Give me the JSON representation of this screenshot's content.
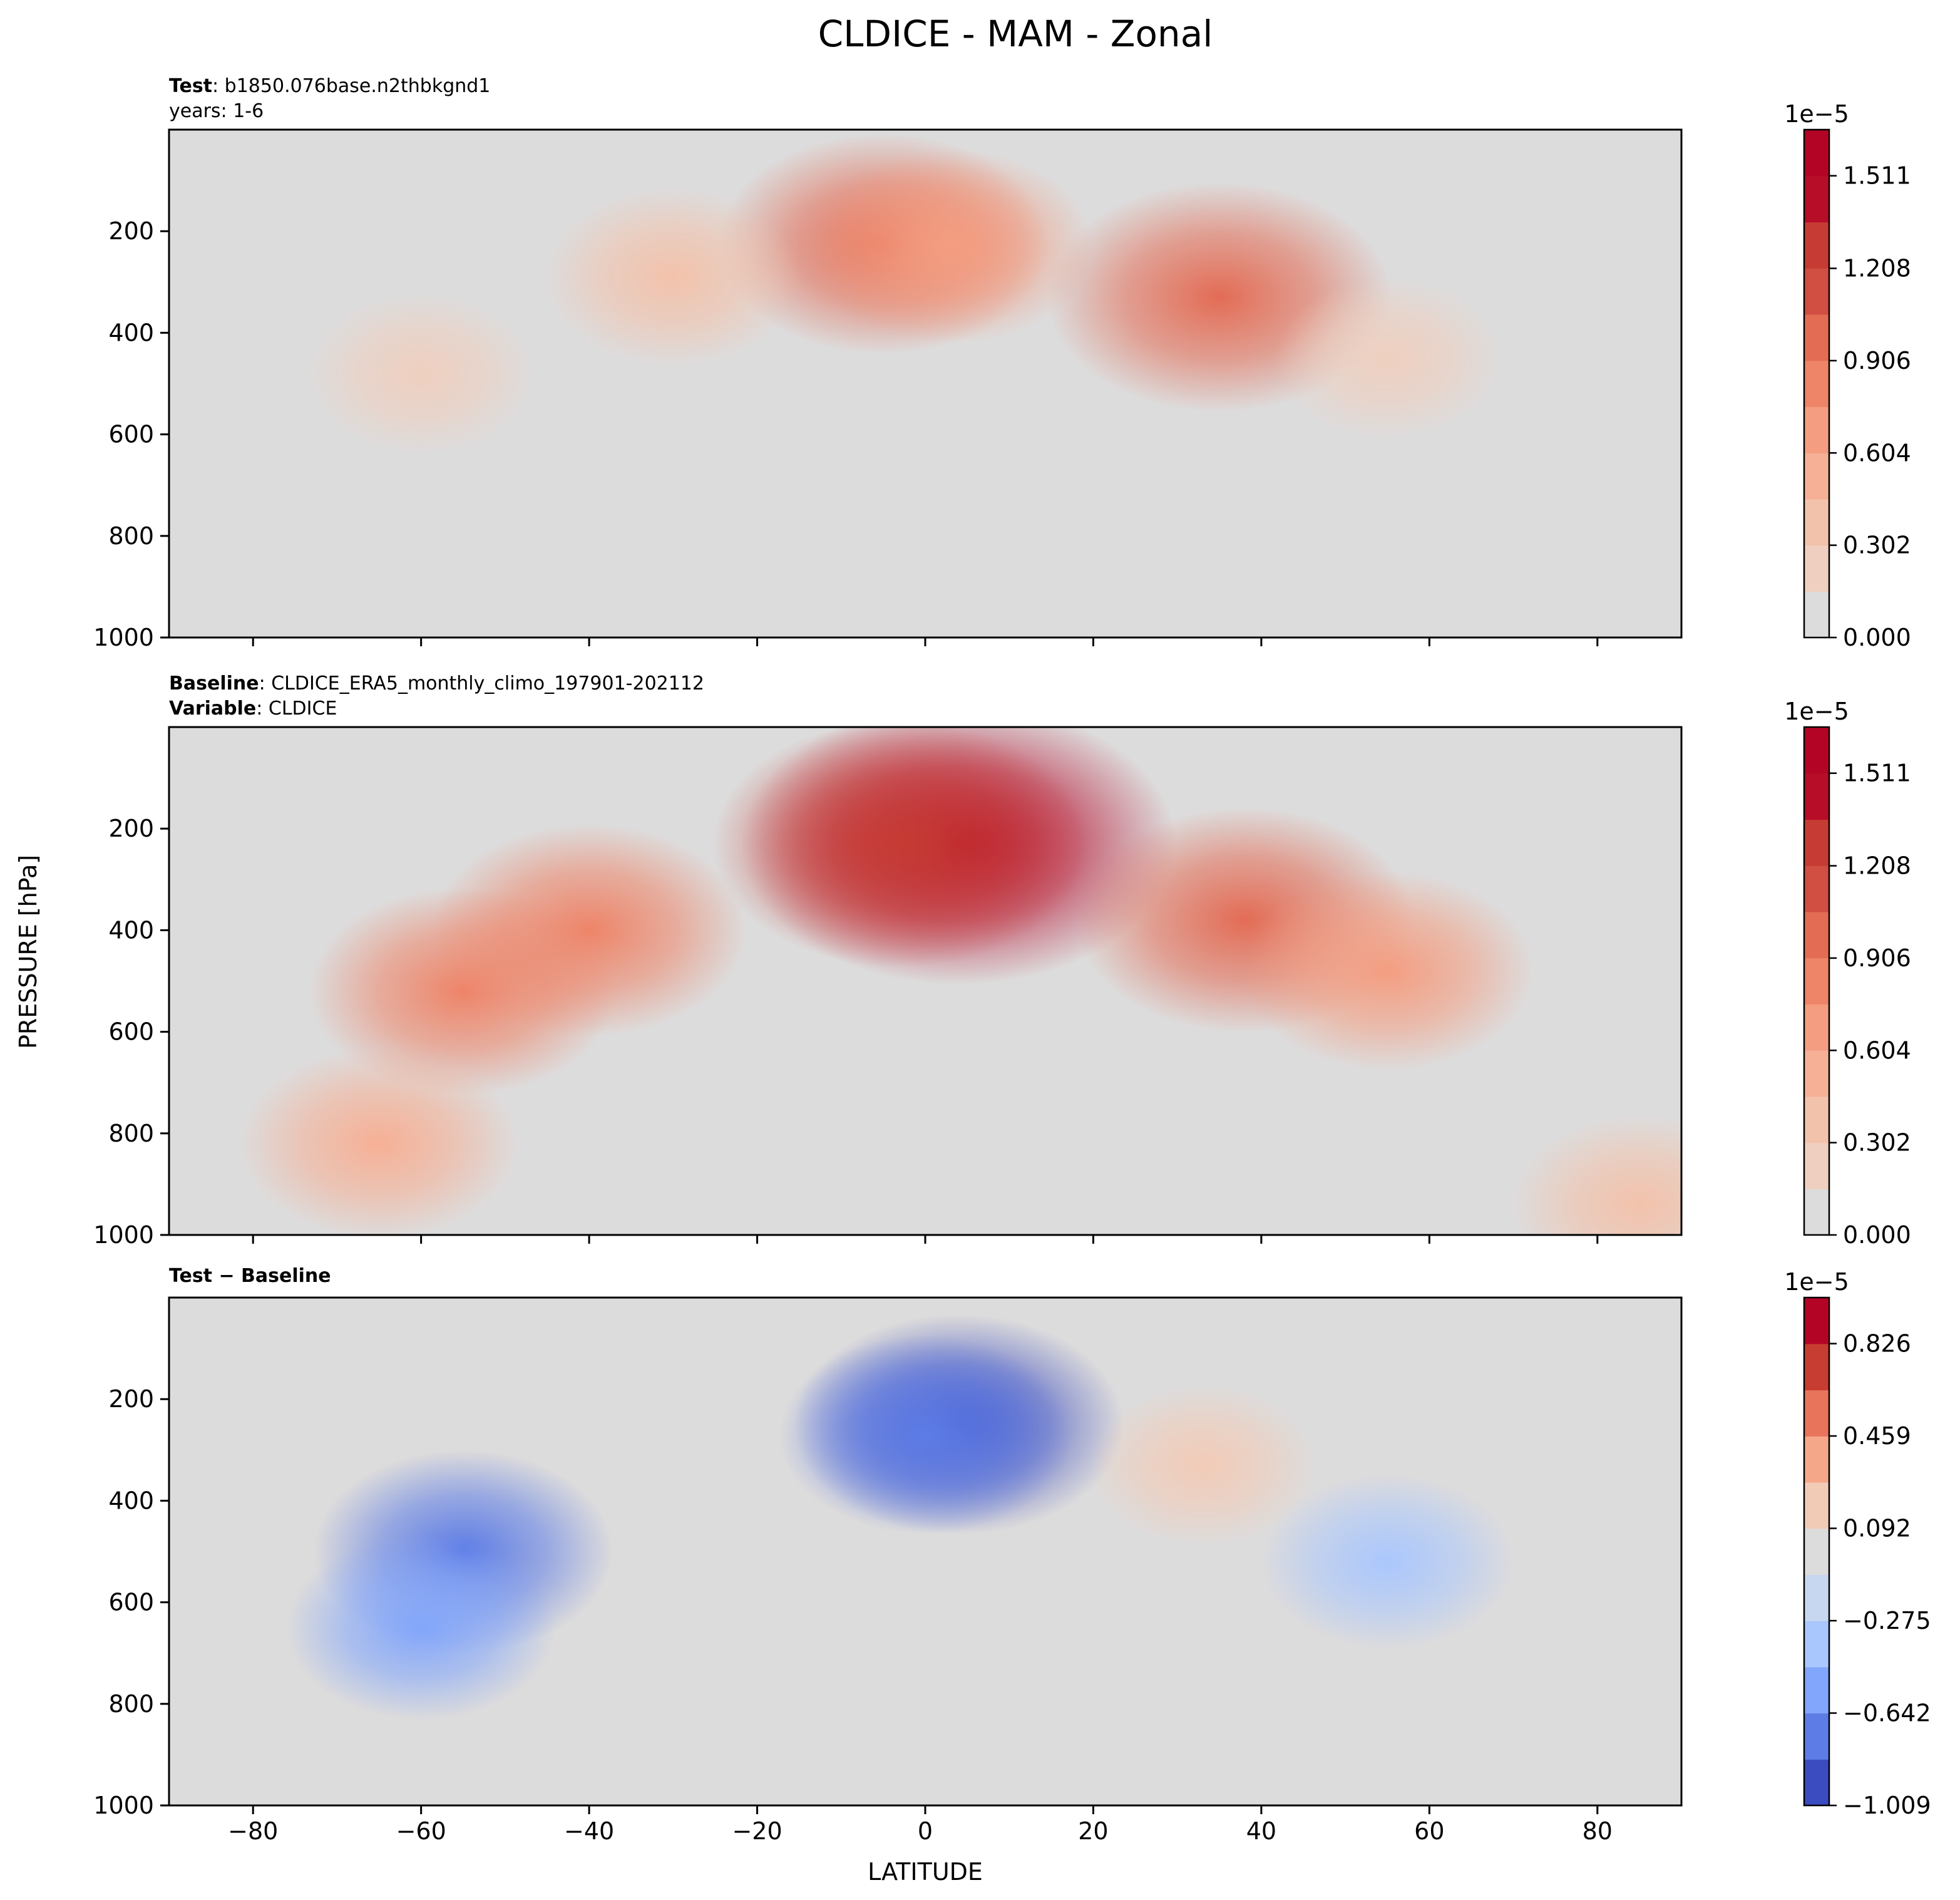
{
  "figure": {
    "title": "CLDICE - MAM - Zonal",
    "ylabel": "PRESSURE [hPa]",
    "xlabel": "LATITUDE"
  },
  "panels": [
    {
      "id": "test",
      "meta_line1_bold": "Test",
      "meta_line1_text": ": b1850.076base.n2thbkgnd1",
      "meta_line2_bold": "",
      "meta_line2_text": "years: 1-6",
      "colorbar_exponent": "1e−5",
      "colorbar_ticks": [
        "0.000",
        "0.302",
        "0.604",
        "0.906",
        "1.208",
        "1.511"
      ]
    },
    {
      "id": "baseline",
      "meta_line1_bold": "Baseline",
      "meta_line1_text": ": CLDICE_ERA5_monthly_climo_197901-202112",
      "meta_line2_bold": "Variable",
      "meta_line2_text": ": CLDICE",
      "colorbar_exponent": "1e−5",
      "colorbar_ticks": [
        "0.000",
        "0.302",
        "0.604",
        "0.906",
        "1.208",
        "1.511"
      ]
    },
    {
      "id": "diff",
      "meta_line1_bold": "Test − Baseline",
      "meta_line1_text": "",
      "meta_line2_bold": "",
      "meta_line2_text": "",
      "colorbar_exponent": "1e−5",
      "colorbar_ticks": [
        "−1.009",
        "−0.642",
        "−0.275",
        "0.092",
        "0.459",
        "0.826"
      ]
    }
  ],
  "chart_data": [
    {
      "type": "heatmap",
      "title": "Test: b1850.076base.n2thbkgnd1, years: 1-6",
      "xlabel": "LATITUDE",
      "ylabel": "PRESSURE [hPa]",
      "xlim": [
        -90,
        90
      ],
      "ylim": [
        1000,
        0
      ],
      "x_ticks": [
        -80,
        -60,
        -40,
        -20,
        0,
        20,
        40,
        60,
        80
      ],
      "y_ticks": [
        200,
        400,
        600,
        800,
        1000
      ],
      "units_multiplier": "1e-5",
      "colorbar": {
        "min": 0.0,
        "max": 1.662,
        "levels": 11,
        "ticks": [
          0.0,
          0.302,
          0.604,
          0.906,
          1.208,
          1.511
        ],
        "colors": [
          "#dddcdc",
          "#efcfbf",
          "#f3c2ab",
          "#f6b095",
          "#f49d80",
          "#ee8468",
          "#e36c55",
          "#d14e42",
          "#c63b33",
          "#b70d28",
          "#b40426"
        ]
      },
      "features": [
        {
          "lat": -5,
          "p": 225,
          "value": 0.95
        },
        {
          "lat": 3,
          "p": 230,
          "value": 0.65
        },
        {
          "lat": 35,
          "p": 330,
          "value": 1.05
        },
        {
          "lat": -30,
          "p": 290,
          "value": 0.45
        },
        {
          "lat": -60,
          "p": 480,
          "value": 0.25
        },
        {
          "lat": 55,
          "p": 450,
          "value": 0.25
        }
      ]
    },
    {
      "type": "heatmap",
      "title": "Baseline: CLDICE_ERA5_monthly_climo_197901-202112, Variable: CLDICE",
      "xlabel": "LATITUDE",
      "ylabel": "PRESSURE [hPa]",
      "xlim": [
        -90,
        90
      ],
      "ylim": [
        1000,
        0
      ],
      "x_ticks": [
        -80,
        -60,
        -40,
        -20,
        0,
        20,
        40,
        60,
        80
      ],
      "y_ticks": [
        200,
        400,
        600,
        800,
        1000
      ],
      "units_multiplier": "1e-5",
      "colorbar": {
        "min": 0.0,
        "max": 1.662,
        "levels": 11,
        "ticks": [
          0.0,
          0.302,
          0.604,
          0.906,
          1.208,
          1.511
        ],
        "colors": [
          "#dddcdc",
          "#efcfbf",
          "#f3c2ab",
          "#f6b095",
          "#f49d80",
          "#ee8468",
          "#e36c55",
          "#d14e42",
          "#c63b33",
          "#b70d28",
          "#b40426"
        ]
      },
      "features": [
        {
          "lat": 4,
          "p": 230,
          "value": 1.65
        },
        {
          "lat": -3,
          "p": 230,
          "value": 1.25
        },
        {
          "lat": 38,
          "p": 380,
          "value": 1.0
        },
        {
          "lat": -55,
          "p": 520,
          "value": 0.8
        },
        {
          "lat": -40,
          "p": 400,
          "value": 0.85
        },
        {
          "lat": 55,
          "p": 480,
          "value": 0.7
        },
        {
          "lat": -65,
          "p": 820,
          "value": 0.6
        },
        {
          "lat": 85,
          "p": 940,
          "value": 0.45
        }
      ]
    },
    {
      "type": "heatmap",
      "title": "Test − Baseline",
      "xlabel": "LATITUDE",
      "ylabel": "PRESSURE [hPa]",
      "xlim": [
        -90,
        90
      ],
      "ylim": [
        1000,
        0
      ],
      "x_ticks": [
        -80,
        -60,
        -40,
        -20,
        0,
        20,
        40,
        60,
        80
      ],
      "y_ticks": [
        200,
        400,
        600,
        800,
        1000
      ],
      "units_multiplier": "1e-5",
      "colorbar": {
        "min": -1.009,
        "max": 1.009,
        "levels": 11,
        "ticks": [
          -1.009,
          -0.642,
          -0.275,
          0.092,
          0.459,
          0.826
        ],
        "colors": [
          "#3b4cc0",
          "#5d7ce6",
          "#82a6fb",
          "#aac7fd",
          "#c7d7f0",
          "#dddcdc",
          "#f2cbb7",
          "#f5a889",
          "#e7745b",
          "#c83d31",
          "#b40426"
        ]
      },
      "features": [
        {
          "lat": 4,
          "p": 250,
          "value": -0.95
        },
        {
          "lat": 0,
          "p": 270,
          "value": -0.7
        },
        {
          "lat": -55,
          "p": 500,
          "value": -0.75
        },
        {
          "lat": -60,
          "p": 650,
          "value": -0.55
        },
        {
          "lat": 55,
          "p": 520,
          "value": -0.45
        },
        {
          "lat": 33,
          "p": 330,
          "value": 0.25
        }
      ]
    }
  ]
}
